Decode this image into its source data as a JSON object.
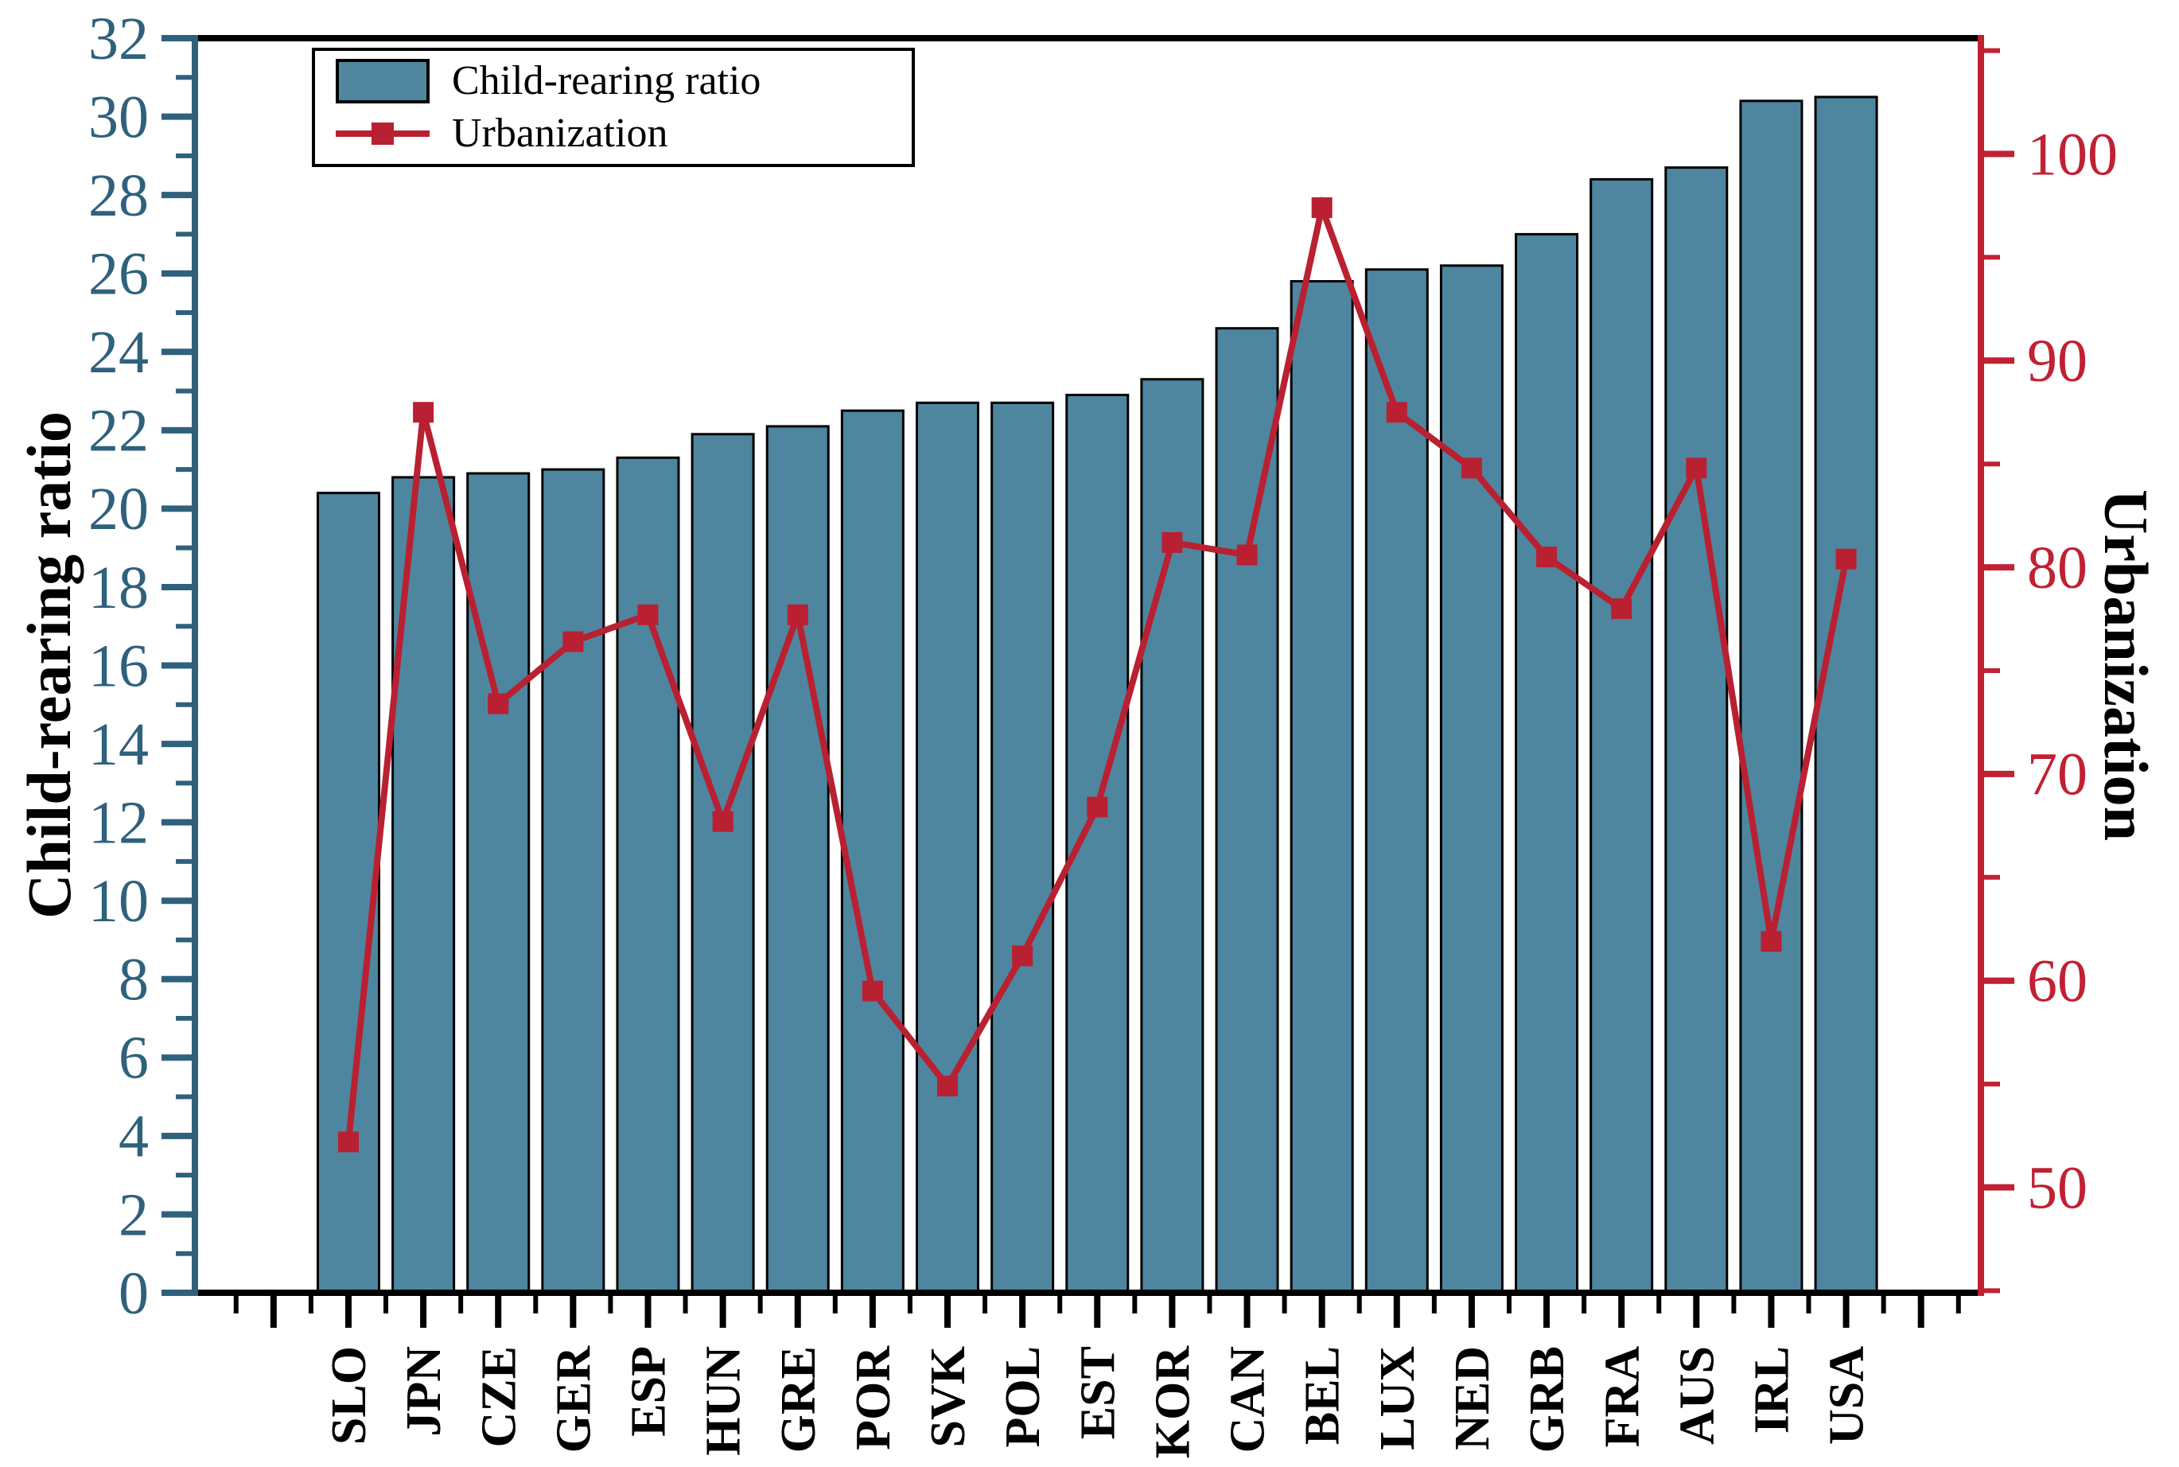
{
  "chart_data": {
    "type": "bar",
    "title": "",
    "categories": [
      "SLO",
      "JPN",
      "CZE",
      "GER",
      "ESP",
      "HUN",
      "GRE",
      "POR",
      "SVK",
      "POL",
      "EST",
      "KOR",
      "CAN",
      "BEL",
      "LUX",
      "NED",
      "GRB",
      "FRA",
      "AUS",
      "IRL",
      "USA"
    ],
    "series": [
      {
        "name": "Child-rearing ratio",
        "type": "bar",
        "axis": "left",
        "values": [
          20.4,
          20.8,
          20.9,
          21.0,
          21.3,
          21.9,
          22.1,
          22.5,
          22.7,
          22.7,
          22.9,
          23.3,
          24.6,
          25.8,
          26.1,
          26.2,
          27.0,
          28.4,
          28.7,
          30.4,
          30.5
        ]
      },
      {
        "name": "Urbanization",
        "type": "line",
        "axis": "right",
        "values": [
          52.2,
          87.5,
          73.4,
          76.4,
          77.7,
          67.7,
          77.7,
          59.5,
          54.9,
          61.2,
          68.4,
          81.2,
          80.6,
          97.4,
          87.5,
          84.8,
          80.5,
          78.0,
          84.8,
          61.9,
          80.4
        ]
      }
    ],
    "left_axis": {
      "label": "Child-rearing ratio",
      "min": 0,
      "max": 32,
      "major_step": 2,
      "minor_step": 1,
      "color": "#2f617d"
    },
    "right_axis": {
      "label": "Urbanization",
      "min": 44.9,
      "max": 105.6,
      "major_step": 10,
      "minor_step": 5,
      "major_ticks": [
        50,
        60,
        70,
        80,
        90,
        100
      ],
      "color": "#c02133"
    },
    "legend": {
      "position": "top-left",
      "entries": [
        {
          "label": "Child-rearing ratio",
          "swatch": "bar"
        },
        {
          "label": "Urbanization",
          "swatch": "line-square"
        }
      ]
    },
    "grid": "off",
    "colors": {
      "bar_fill": "#4e86a0",
      "bar_border": "#000000",
      "line": "#b92031",
      "marker": "#b92031",
      "x_axis": "#000000"
    }
  }
}
